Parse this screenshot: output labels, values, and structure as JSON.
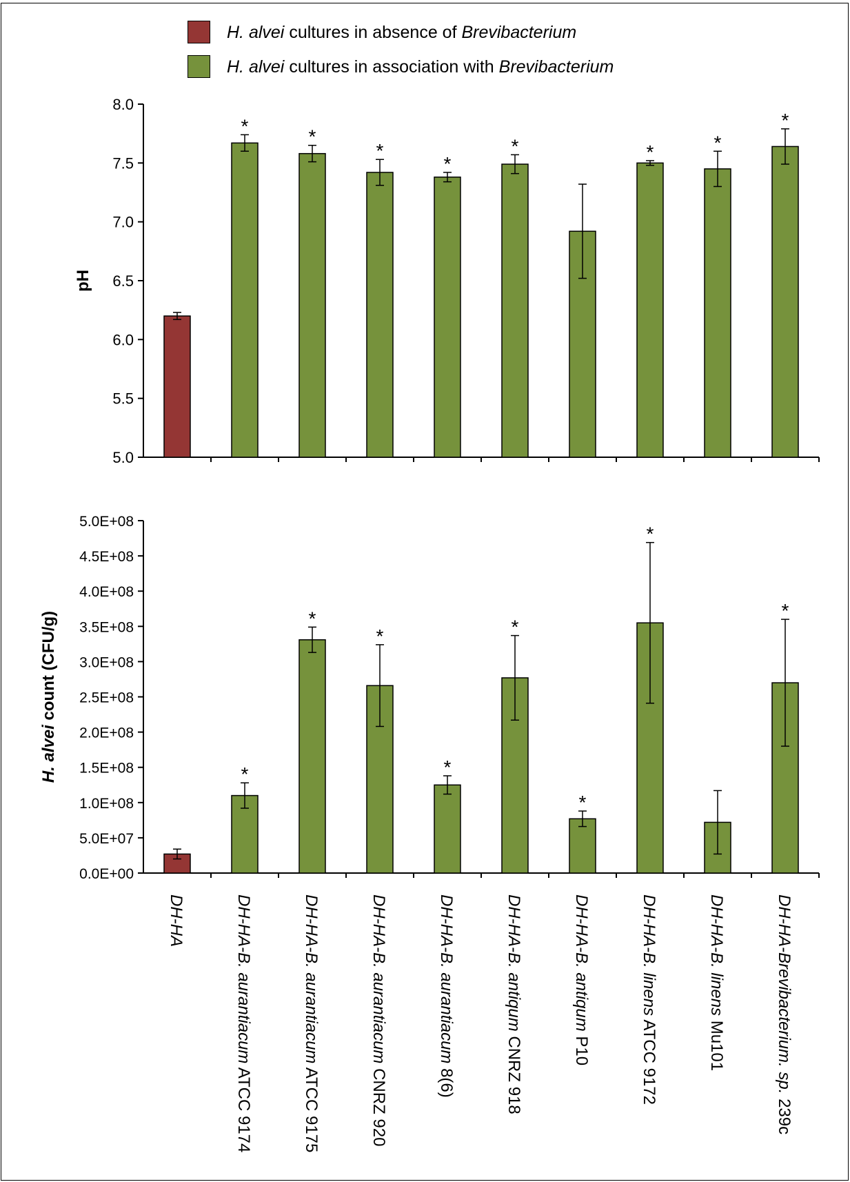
{
  "legend": {
    "absence": {
      "pre": "",
      "italic1": "H. alvei",
      "mid": " cultures in absence of ",
      "italic2": "Brevibacterium",
      "color": "#943634"
    },
    "association": {
      "pre": "",
      "italic1": "H. alvei",
      "mid": " cultures in association with ",
      "italic2": "Brevibacterium",
      "color": "#76923c"
    }
  },
  "colors": {
    "absence": "#943634",
    "association": "#76923c",
    "axis": "#000000"
  },
  "categories": [
    {
      "italic": "DH-HA",
      "normal": ""
    },
    {
      "italic": "DH-HA-B. aurantiacum",
      "normal": " ATCC 9174"
    },
    {
      "italic": "DH-HA-B. aurantiacum",
      "normal": " ATCC 9175"
    },
    {
      "italic": "DH-HA-B. aurantiacum",
      "normal": " CNRZ 920"
    },
    {
      "italic": "DH-HA-B. aurantiacum",
      "normal": " 8(6)"
    },
    {
      "italic": "DH-HA-B. antiqum",
      "normal": " CNRZ 918"
    },
    {
      "italic": "DH-HA-B. antiqum",
      "normal": " P10"
    },
    {
      "italic": "DH-HA-B. linens",
      "normal": " ATCC 9172"
    },
    {
      "italic": "DH-HA-B. linens",
      "normal": " Mu101"
    },
    {
      "italic": "DH-HA-Brevibacterium. sp.",
      "normal": " 239c"
    }
  ],
  "chart_data": [
    {
      "type": "bar",
      "title": "",
      "ylabel": "pH",
      "ylim": [
        5.0,
        8.0
      ],
      "yticks": [
        "5.0",
        "5.5",
        "6.0",
        "6.5",
        "7.0",
        "7.5",
        "8.0"
      ],
      "ytick_values": [
        5.0,
        5.5,
        6.0,
        6.5,
        7.0,
        7.5,
        8.0
      ],
      "values": [
        6.2,
        7.67,
        7.58,
        7.42,
        7.38,
        7.49,
        6.92,
        7.5,
        7.45,
        7.64
      ],
      "errors": [
        0.03,
        0.07,
        0.07,
        0.11,
        0.04,
        0.08,
        0.4,
        0.02,
        0.15,
        0.15
      ],
      "significant": [
        false,
        true,
        true,
        true,
        true,
        true,
        false,
        true,
        true,
        true
      ],
      "marker": "*",
      "bar_groups": [
        "absence",
        "association",
        "association",
        "association",
        "association",
        "association",
        "association",
        "association",
        "association",
        "association"
      ]
    },
    {
      "type": "bar",
      "title": "",
      "ylabel_italic": "H. alvei",
      "ylabel_rest": " count (CFU/g)",
      "ylim": [
        0,
        500000000
      ],
      "yticks": [
        "0.0E+00",
        "5.0E+07",
        "1.0E+08",
        "1.5E+08",
        "2.0E+08",
        "2.5E+08",
        "3.0E+08",
        "3.5E+08",
        "4.0E+08",
        "4.5E+08",
        "5.0E+08"
      ],
      "ytick_values": [
        0,
        50000000,
        100000000,
        150000000,
        200000000,
        250000000,
        300000000,
        350000000,
        400000000,
        450000000,
        500000000
      ],
      "values": [
        27000000,
        110000000,
        331000000,
        266000000,
        125000000,
        277000000,
        77000000,
        355000000,
        72000000,
        270000000
      ],
      "errors": [
        7000000,
        18000000,
        18000000,
        58000000,
        13000000,
        60000000,
        11000000,
        114000000,
        45000000,
        90000000
      ],
      "significant": [
        false,
        true,
        true,
        true,
        true,
        true,
        true,
        true,
        false,
        true
      ],
      "marker": "*",
      "bar_groups": [
        "absence",
        "association",
        "association",
        "association",
        "association",
        "association",
        "association",
        "association",
        "association",
        "association"
      ]
    }
  ]
}
